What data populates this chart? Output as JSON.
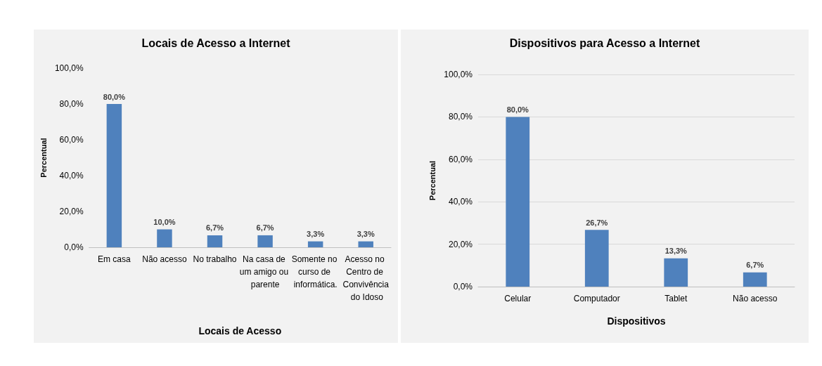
{
  "chart_data": [
    {
      "type": "bar",
      "title": "Locais de Acesso a Internet",
      "xlabel": "Locais de Acesso",
      "ylabel": "Percentual",
      "categories": [
        "Em casa",
        "Não acesso",
        "No trabalho",
        "Na casa de um amigo ou parente",
        "Somente no curso de informática.",
        "Acesso no Centro de Convivência do Idoso"
      ],
      "values": [
        80,
        10,
        6.7,
        6.7,
        3.3,
        3.3
      ],
      "color": "#4f81bd",
      "value_labels": [
        "80,0%",
        "10,0%",
        "6,7%",
        "6,7%",
        "3,3%",
        "3,3%"
      ],
      "ylim": [
        0,
        100
      ],
      "yticks": [
        {
          "value": 0,
          "label": "0,0%"
        },
        {
          "value": 20,
          "label": "20,0%"
        },
        {
          "value": 40,
          "label": "40,0%"
        },
        {
          "value": 60,
          "label": "60,0%"
        },
        {
          "value": 80,
          "label": "80,0%"
        },
        {
          "value": 100,
          "label": "100,0%"
        }
      ],
      "grid": false
    },
    {
      "type": "bar",
      "title": "Dispositivos para Acesso a Internet",
      "xlabel": "Dispositivos",
      "ylabel": "Percentual",
      "categories": [
        "Celular",
        "Computador",
        "Tablet",
        "Não acesso"
      ],
      "values": [
        80,
        26.7,
        13.3,
        6.7
      ],
      "color": "#4f81bd",
      "value_labels": [
        "80,0%",
        "26,7%",
        "13,3%",
        "6,7%"
      ],
      "ylim": [
        0,
        100
      ],
      "yticks": [
        {
          "value": 0,
          "label": "0,0%"
        },
        {
          "value": 20,
          "label": "20,0%"
        },
        {
          "value": 40,
          "label": "40,0%"
        },
        {
          "value": 60,
          "label": "60,0%"
        },
        {
          "value": 80,
          "label": "80,0%"
        },
        {
          "value": 100,
          "label": "100,0%"
        }
      ],
      "grid": "y"
    }
  ]
}
